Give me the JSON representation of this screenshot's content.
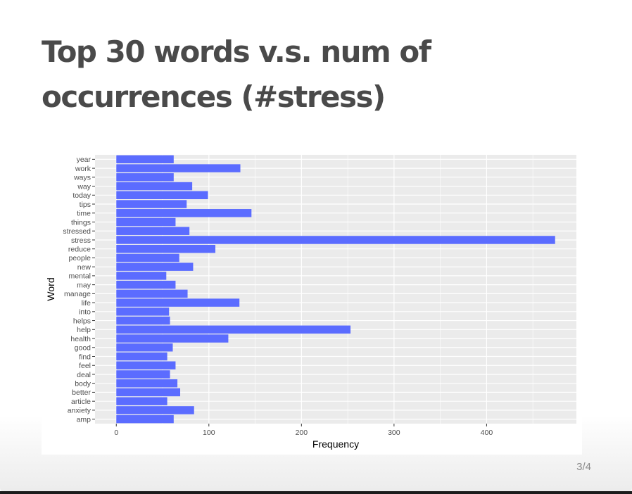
{
  "slide": {
    "title": "Top 30 words v.s. num of occurrences (#stress)",
    "page_number": "3/4"
  },
  "colors": {
    "bar": "#5b6cff",
    "panel_bg": "#ebebeb",
    "grid": "#ffffff",
    "title": "#4a4a4a"
  },
  "chart_data": {
    "type": "bar",
    "orientation": "horizontal",
    "xlabel": "Frequency",
    "ylabel": "Word",
    "xlim": [
      -23,
      497
    ],
    "xticks": [
      0,
      100,
      200,
      300,
      400
    ],
    "grid": true,
    "categories": [
      "year",
      "work",
      "ways",
      "way",
      "today",
      "tips",
      "time",
      "things",
      "stressed",
      "stress",
      "reduce",
      "people",
      "new",
      "mental",
      "may",
      "manage",
      "life",
      "into",
      "helps",
      "help",
      "health",
      "good",
      "find",
      "feel",
      "deal",
      "body",
      "better",
      "article",
      "anxiety",
      "amp"
    ],
    "values": [
      62,
      134,
      62,
      82,
      99,
      76,
      146,
      64,
      79,
      474,
      107,
      68,
      83,
      54,
      64,
      77,
      133,
      57,
      58,
      253,
      121,
      61,
      55,
      64,
      58,
      66,
      69,
      55,
      84,
      62
    ]
  }
}
